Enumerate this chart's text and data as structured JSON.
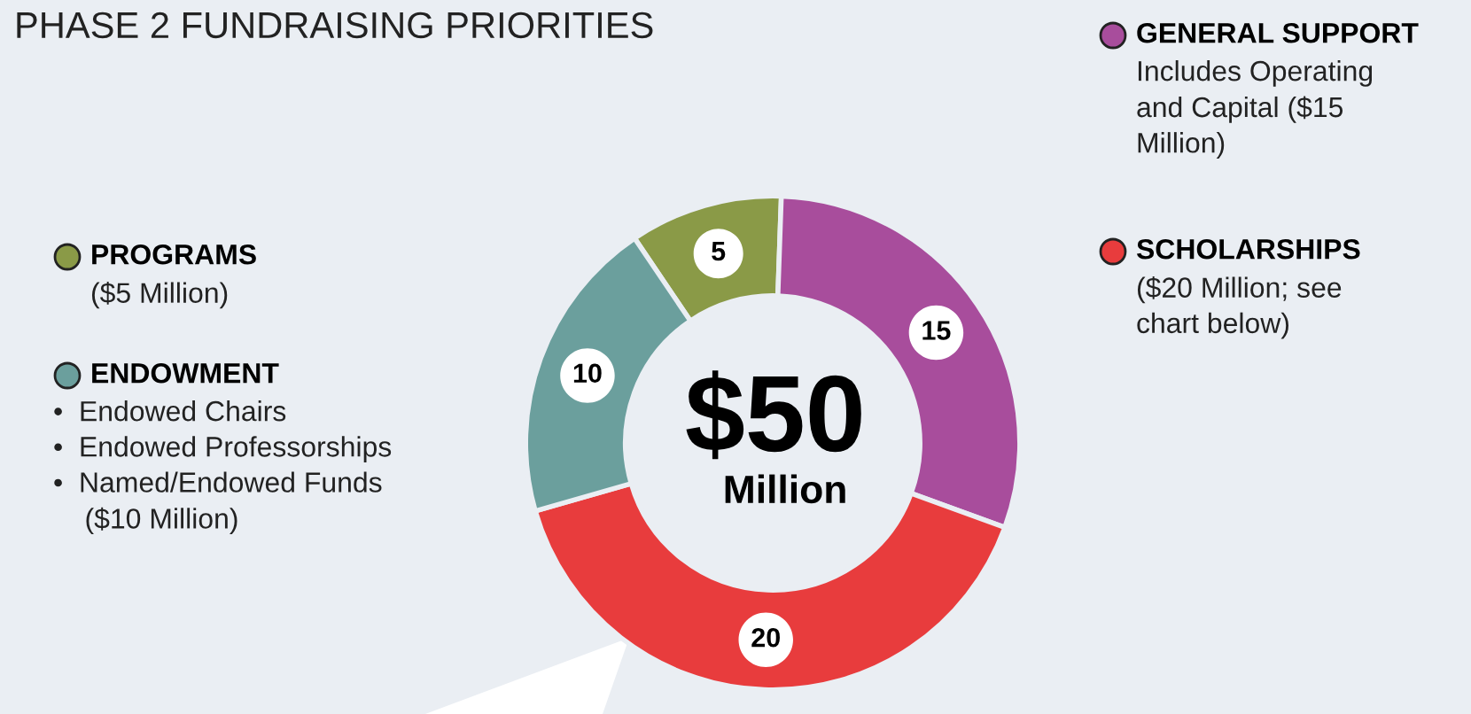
{
  "chart_data": {
    "type": "donut",
    "title": "PHASE 2 FUNDRAISING PRIORITIES",
    "categories": [
      "PROGRAMS",
      "GENERAL SUPPORT",
      "SCHOLARSHIPS",
      "ENDOWMENT"
    ],
    "values": [
      5,
      15,
      20,
      10
    ],
    "colors": [
      "#8a9a47",
      "#a84d9c",
      "#e83c3d",
      "#6b9f9d"
    ],
    "data_labels": true,
    "legend": "left",
    "annotations": [
      "$50",
      "Million",
      "($5 Million)",
      "Includes Operating\nand Capital ($15\nMillion)",
      "($20 Million; see\nchart below)",
      "•  Endowed Chairs\n•  Endowed Professorships\n•  Named/Endowed Funds\n    ($10 Million)"
    ]
  }
}
